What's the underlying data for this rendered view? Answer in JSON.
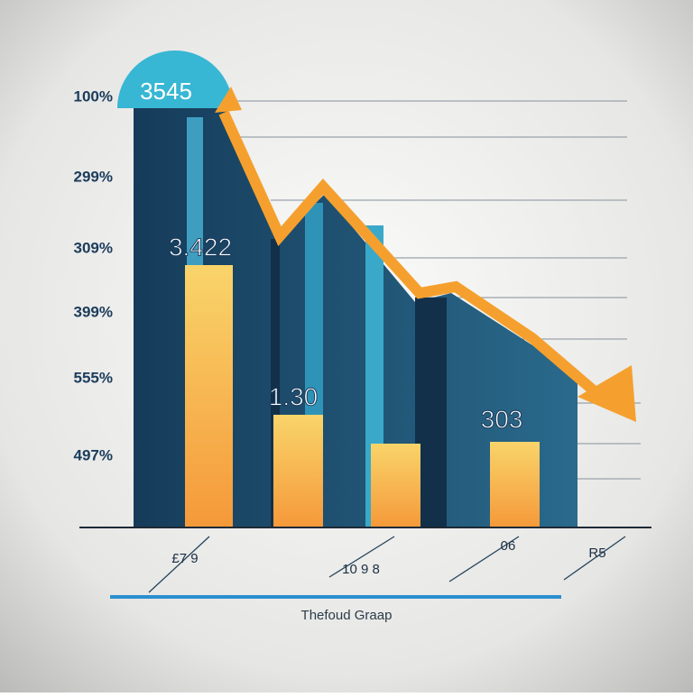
{
  "badge": "3545",
  "y_labels": [
    "100%",
    "299%",
    "309%",
    "399%",
    "555%",
    "497%"
  ],
  "value_labels": [
    "3.422",
    "1.30",
    "303"
  ],
  "x_labels": [
    "£7 9",
    "10 9 8",
    "06",
    "R5"
  ],
  "caption": "Thefoud Graap"
}
